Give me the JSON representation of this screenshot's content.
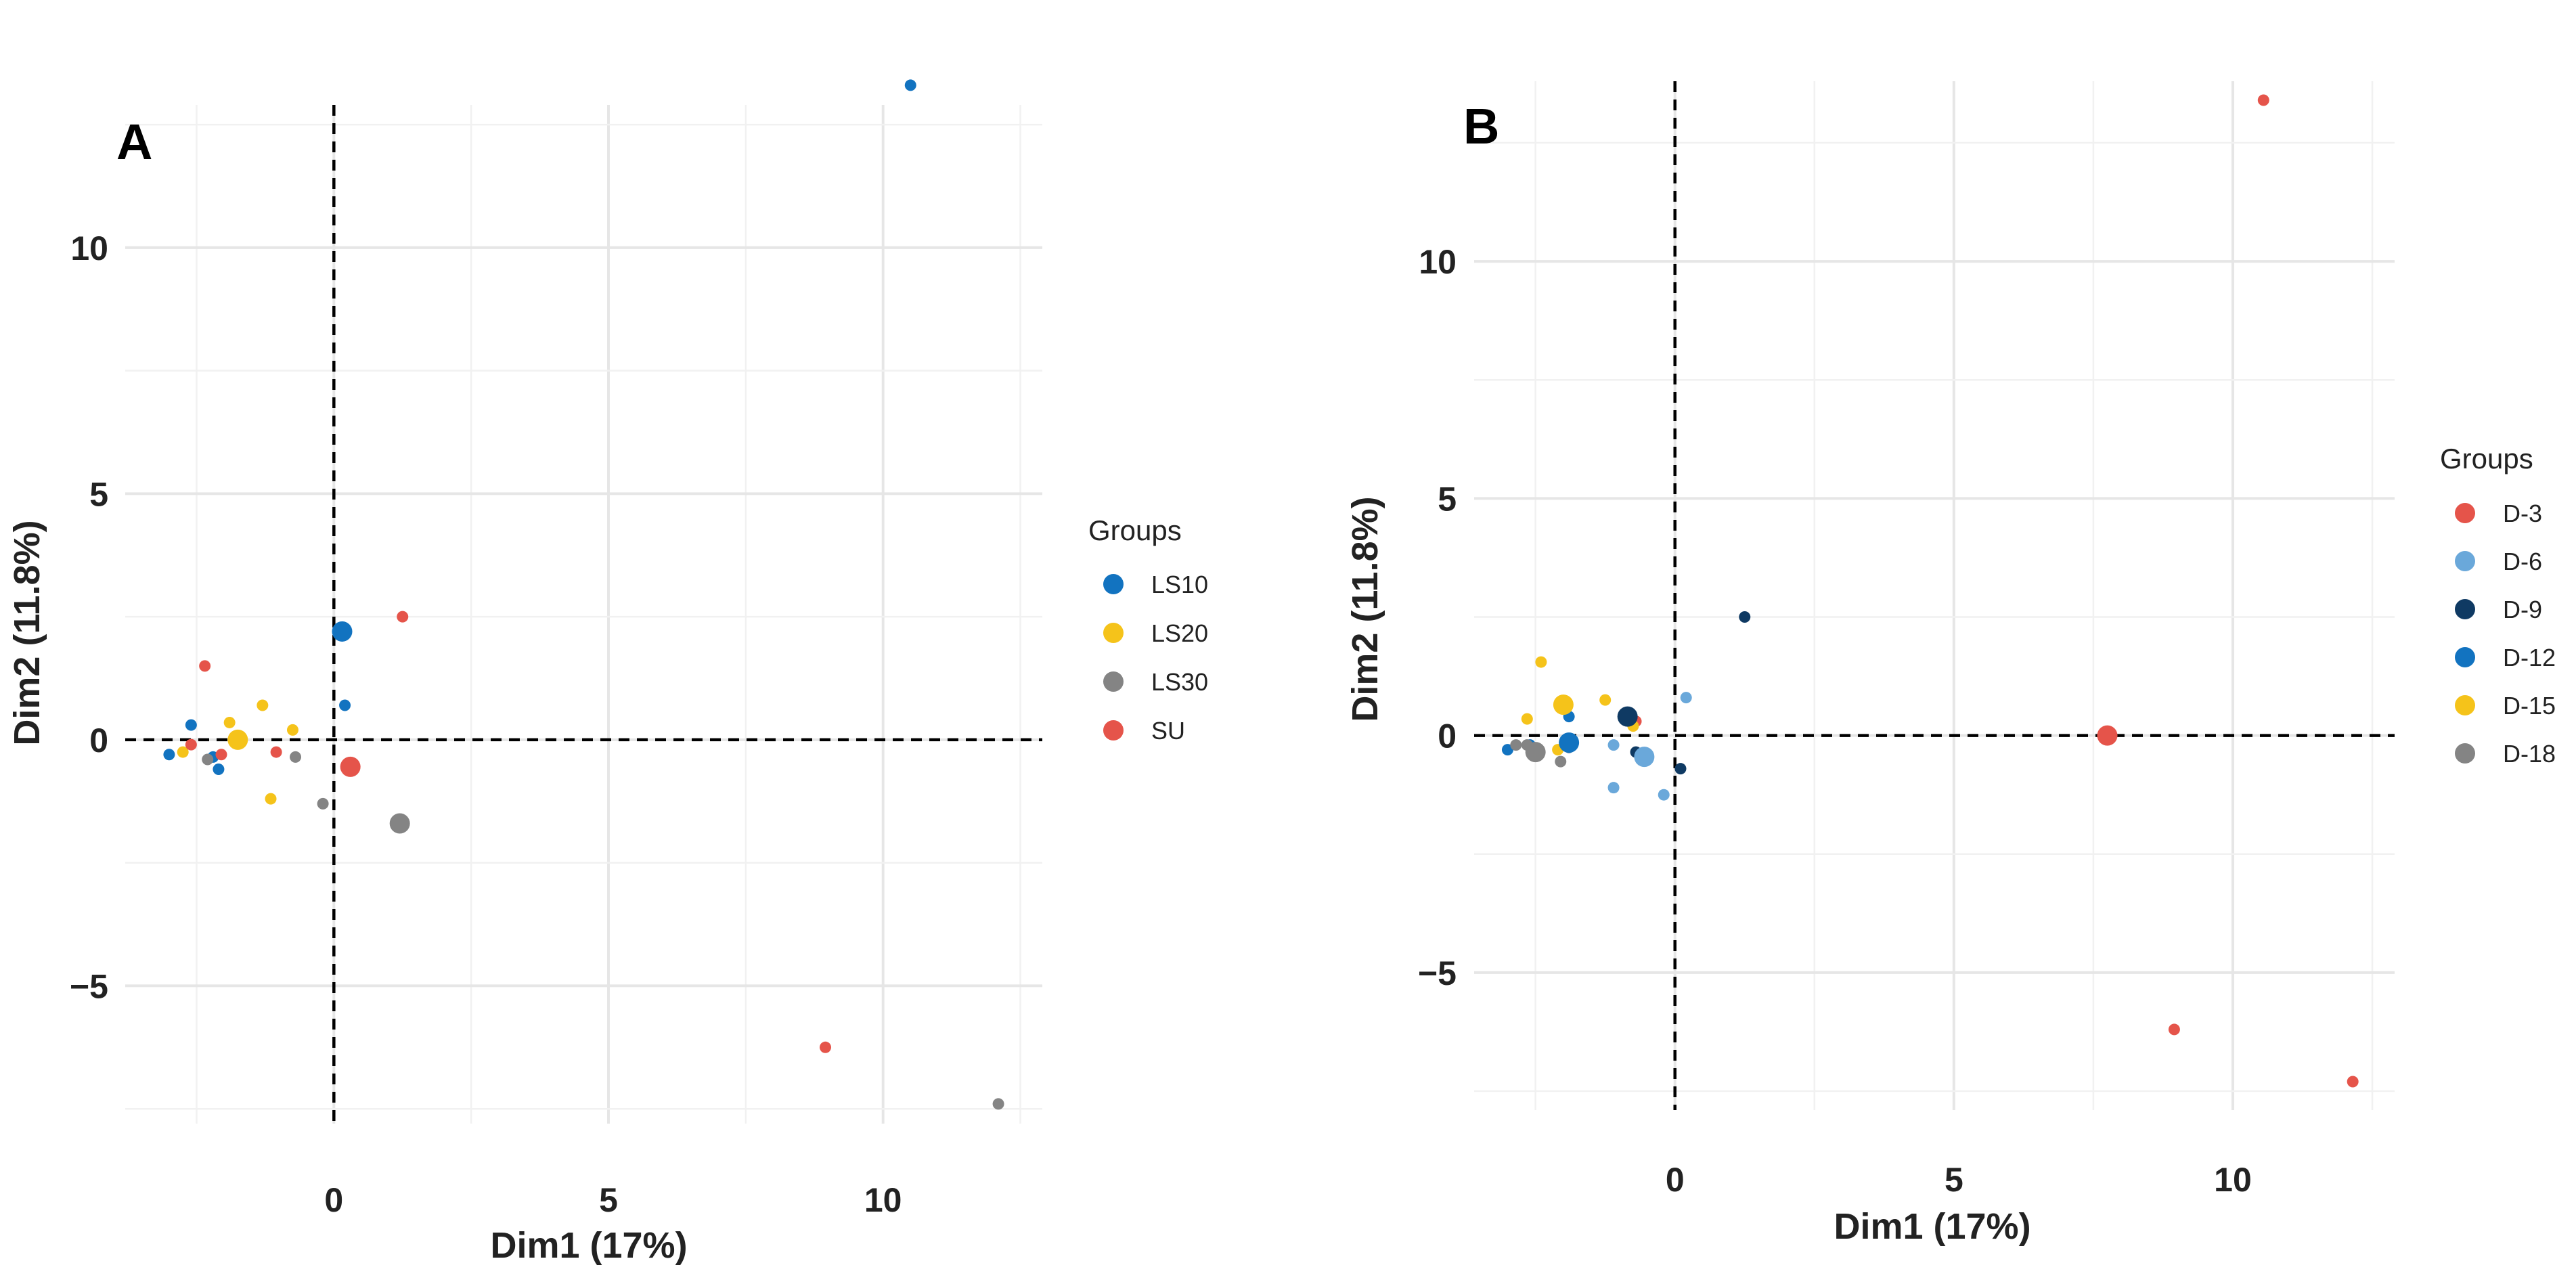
{
  "chart_data": [
    {
      "panel": "A",
      "type": "scatter",
      "xlabel": "Dim1 (17%)",
      "ylabel": "Dim2 (11.8%)",
      "xlim": [
        -3.8,
        12.9
      ],
      "ylim": [
        -7.8,
        12.9
      ],
      "xticks": [
        0,
        5,
        10
      ],
      "yticks": [
        -5,
        0,
        5,
        10
      ],
      "grid": true,
      "reference_lines": {
        "x": 0,
        "y": 0
      },
      "legend": {
        "title": "Groups",
        "placement": "right"
      },
      "series": [
        {
          "name": "LS10",
          "color": "#1273c0",
          "points": [
            [
              -3.0,
              -0.3
            ],
            [
              -2.6,
              0.3
            ],
            [
              -2.1,
              -0.6
            ],
            [
              -2.2,
              -0.35
            ],
            [
              0.2,
              0.7
            ],
            [
              10.5,
              13.3
            ]
          ],
          "centroid": [
            0.15,
            2.2
          ]
        },
        {
          "name": "LS20",
          "color": "#f5c31a",
          "points": [
            [
              -2.75,
              -0.25
            ],
            [
              -1.9,
              0.35
            ],
            [
              -1.3,
              0.7
            ],
            [
              -1.15,
              -1.2
            ],
            [
              -0.75,
              0.2
            ]
          ],
          "centroid": [
            -1.75,
            0.0
          ]
        },
        {
          "name": "LS30",
          "color": "#848484",
          "points": [
            [
              -2.3,
              -0.4
            ],
            [
              -0.7,
              -0.35
            ],
            [
              -0.2,
              -1.3
            ],
            [
              12.1,
              -7.4
            ]
          ],
          "centroid": [
            1.2,
            -1.7
          ]
        },
        {
          "name": "SU",
          "color": "#e5544a",
          "points": [
            [
              -2.35,
              1.5
            ],
            [
              -2.6,
              -0.1
            ],
            [
              -2.05,
              -0.3
            ],
            [
              -1.05,
              -0.25
            ],
            [
              1.25,
              2.5
            ],
            [
              8.95,
              -6.25
            ]
          ],
          "centroid": [
            0.3,
            -0.55
          ]
        }
      ]
    },
    {
      "panel": "B",
      "type": "scatter",
      "xlabel": "Dim1 (17%)",
      "ylabel": "Dim2 (11.8%)",
      "xlim": [
        -3.6,
        12.9
      ],
      "ylim": [
        -7.9,
        13.8
      ],
      "xticks": [
        0,
        5,
        10
      ],
      "yticks": [
        -5,
        0,
        5,
        10
      ],
      "grid": true,
      "reference_lines": {
        "x": 0,
        "y": 0
      },
      "legend": {
        "title": "Groups",
        "placement": "right"
      },
      "series": [
        {
          "name": "D-3",
          "color": "#e5544a",
          "points": [
            [
              10.55,
              13.4
            ],
            [
              8.95,
              -6.2
            ],
            [
              12.15,
              -7.3
            ],
            [
              -0.7,
              0.3
            ]
          ],
          "centroid": [
            7.75,
            0.0
          ]
        },
        {
          "name": "D-6",
          "color": "#6aa8da",
          "points": [
            [
              0.2,
              0.8
            ],
            [
              -1.1,
              -0.2
            ],
            [
              -1.1,
              -1.1
            ],
            [
              -0.2,
              -1.25
            ],
            [
              -0.5,
              -0.5
            ]
          ],
          "centroid": [
            -0.55,
            -0.45
          ]
        },
        {
          "name": "D-9",
          "color": "#0f3a63",
          "points": [
            [
              1.25,
              2.5
            ],
            [
              0.1,
              -0.7
            ],
            [
              -0.7,
              -0.35
            ],
            [
              -1.9,
              -0.25
            ]
          ],
          "centroid": [
            -0.85,
            0.4
          ]
        },
        {
          "name": "D-12",
          "color": "#1273c0",
          "points": [
            [
              -3.0,
              -0.3
            ],
            [
              -1.9,
              0.4
            ],
            [
              -2.6,
              -0.2
            ]
          ],
          "centroid": [
            -1.9,
            -0.15
          ]
        },
        {
          "name": "D-15",
          "color": "#f5c31a",
          "points": [
            [
              -2.4,
              1.55
            ],
            [
              -2.65,
              0.35
            ],
            [
              -2.1,
              -0.3
            ],
            [
              -0.75,
              0.2
            ],
            [
              -1.25,
              0.75
            ]
          ],
          "centroid": [
            -2.0,
            0.65
          ]
        },
        {
          "name": "D-18",
          "color": "#848484",
          "points": [
            [
              -2.85,
              -0.2
            ],
            [
              -2.05,
              -0.55
            ],
            [
              -2.5,
              -0.3
            ],
            [
              -2.65,
              -0.2
            ]
          ],
          "centroid": [
            -2.5,
            -0.35
          ]
        }
      ]
    }
  ]
}
